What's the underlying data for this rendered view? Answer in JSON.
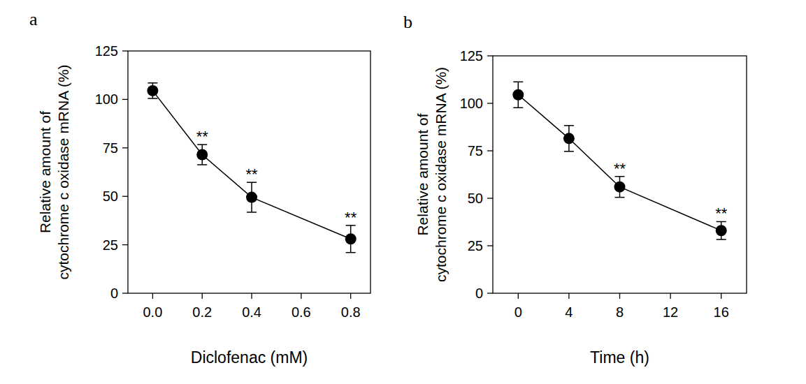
{
  "chart_data": [
    {
      "type": "line",
      "panel": "a",
      "x_label": "Diclofenac (mM)",
      "y_label": "Relative amount of\ncytochrome c oxidase mRNA (%)",
      "xlim": [
        -0.1,
        0.88
      ],
      "xticks": [
        {
          "value": 0,
          "label": "0.0"
        },
        0.2,
        0.4,
        0.6,
        0.8
      ],
      "ylim": [
        0,
        125
      ],
      "yticks": [
        0,
        25,
        50,
        75,
        100,
        125
      ],
      "x": [
        0,
        0.2,
        0.4,
        0.8
      ],
      "series": [
        {
          "color": "#000000",
          "marker": "circle",
          "line_style": "solid",
          "values": [
            104.5,
            71.5,
            49.5,
            28
          ],
          "errors": [
            4,
            5.2,
            7.7,
            7
          ]
        }
      ],
      "significance": [
        null,
        "**",
        "**",
        "**"
      ]
    },
    {
      "type": "line",
      "panel": "b",
      "x_label": "Time (h)",
      "y_label": "Relative amount of\ncytochrome c oxidase mRNA (%)",
      "xlim": [
        -2,
        18
      ],
      "xticks": [
        0,
        4,
        8,
        12,
        16
      ],
      "ylim": [
        0,
        125
      ],
      "yticks": [
        0,
        25,
        50,
        75,
        100,
        125
      ],
      "x": [
        0,
        4,
        8,
        16
      ],
      "series": [
        {
          "color": "#000000",
          "marker": "circle",
          "line_style": "solid",
          "values": [
            104.5,
            81.5,
            56,
            33
          ],
          "errors": [
            6.8,
            6.8,
            5.5,
            4.7
          ]
        }
      ],
      "significance": [
        null,
        null,
        "**",
        "**"
      ]
    }
  ]
}
